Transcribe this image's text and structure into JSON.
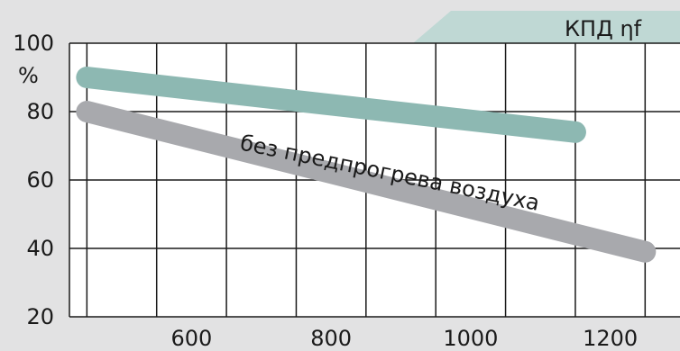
{
  "chart_data": {
    "type": "line",
    "title": "КПД ηf",
    "ylabel": "%",
    "xlim": [
      425,
      1300
    ],
    "ylim": [
      20,
      100
    ],
    "x_ticks": [
      "600",
      "800",
      "1000",
      "1200"
    ],
    "y_ticks": [
      "20",
      "40",
      "60",
      "80",
      "100"
    ],
    "grid": true,
    "colors": {
      "series1": "#8db8b2",
      "series2": "#a8a9ad",
      "title_tab": "#bfd8d4"
    },
    "series": [
      {
        "x": [
          450,
          1150
        ],
        "y": [
          90,
          74
        ]
      },
      {
        "name": "без предпрогрева воздуха",
        "x": [
          450,
          1250
        ],
        "y": [
          80,
          39
        ]
      }
    ]
  }
}
